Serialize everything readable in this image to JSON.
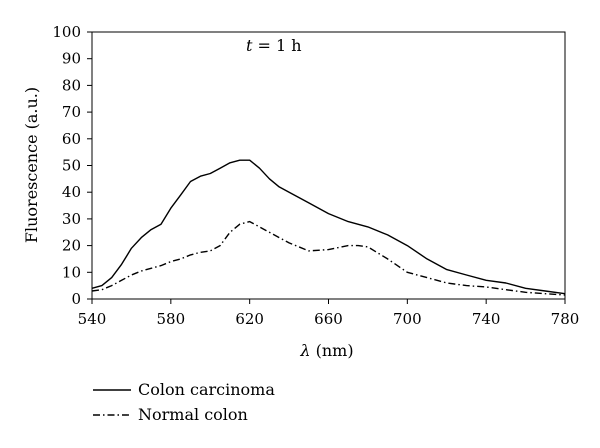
{
  "chart_data": {
    "type": "line",
    "annotation": {
      "var": "t",
      "eq": " = 1 h"
    },
    "xlabel": {
      "var": "λ",
      "unit": " (nm)"
    },
    "ylabel": "Fluorescence (a.u.)",
    "xlim": [
      540,
      780
    ],
    "ylim": [
      0,
      100
    ],
    "xticks": [
      540,
      580,
      620,
      660,
      700,
      740,
      780
    ],
    "yticks": [
      0,
      10,
      20,
      30,
      40,
      50,
      60,
      70,
      80,
      90,
      100
    ],
    "grid": false,
    "legend_position": "bottom-left, below plot",
    "series": [
      {
        "name": "Colon carcinoma",
        "style": "solid",
        "color": "#000000",
        "x": [
          540,
          545,
          550,
          555,
          560,
          565,
          570,
          575,
          580,
          585,
          590,
          595,
          600,
          605,
          610,
          615,
          620,
          625,
          630,
          635,
          640,
          650,
          660,
          670,
          680,
          690,
          700,
          710,
          720,
          730,
          740,
          750,
          760,
          770,
          780
        ],
        "y": [
          4,
          5,
          8,
          13,
          19,
          23,
          26,
          28,
          34,
          39,
          44,
          46,
          47,
          49,
          51,
          52,
          52,
          49,
          45,
          42,
          40,
          36,
          32,
          29,
          27,
          24,
          20,
          15,
          11,
          9,
          7,
          6,
          4,
          3,
          2
        ]
      },
      {
        "name": "Normal colon",
        "style": "dashdot",
        "color": "#000000",
        "x": [
          540,
          545,
          550,
          555,
          560,
          565,
          570,
          575,
          580,
          585,
          590,
          595,
          600,
          605,
          610,
          615,
          620,
          625,
          630,
          635,
          640,
          650,
          660,
          670,
          675,
          680,
          690,
          700,
          710,
          720,
          730,
          740,
          750,
          760,
          770,
          780
        ],
        "y": [
          3,
          3.5,
          5,
          7,
          9,
          10.5,
          11.5,
          12.5,
          14,
          15,
          16.5,
          17.5,
          18,
          20,
          25,
          28,
          29,
          27,
          25,
          23,
          21,
          18,
          18.5,
          20,
          20,
          19.5,
          15,
          10,
          8,
          6,
          5,
          4.5,
          3.5,
          2.5,
          2,
          1.5
        ]
      }
    ]
  }
}
